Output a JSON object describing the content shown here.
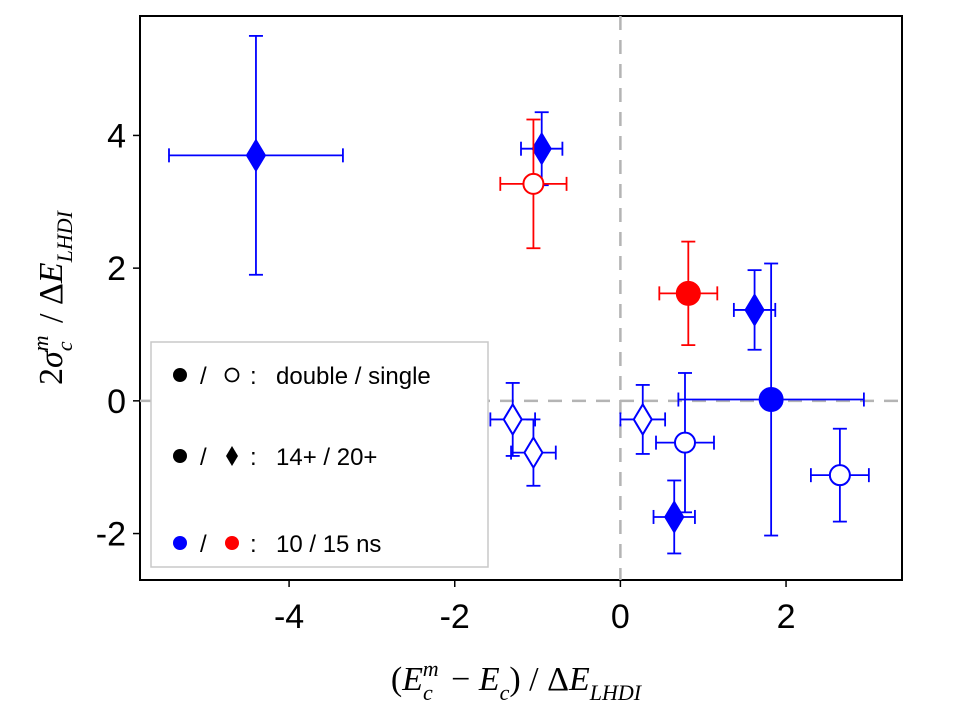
{
  "chart_data": {
    "type": "scatter",
    "xlabel": "(E_c^m − E_c) / ΔE_LHDI",
    "ylabel": "2σ_c^m / ΔE_LHDI",
    "xlim": [
      -5.8,
      3.4
    ],
    "ylim": [
      -2.7,
      5.8
    ],
    "x_ticks": [
      -4,
      -2,
      0,
      2
    ],
    "x_tick_labels": [
      "-4",
      "-2",
      "0",
      "2"
    ],
    "y_ticks": [
      -2,
      0,
      2,
      4
    ],
    "y_tick_labels": [
      "-2",
      "0",
      "2",
      "4"
    ],
    "reference_lines": {
      "x": 0,
      "y": 0,
      "style": "dashed"
    },
    "grid": false,
    "colors": {
      "blue": "#0000ff",
      "red": "#ff0000",
      "ref_line": "#b4b4b4"
    },
    "series": [
      {
        "name": "blue filled diamond (20+, double, 10 ns)",
        "marker": "diamond",
        "filled": true,
        "color": "blue",
        "points": [
          {
            "x": -4.4,
            "y": 3.7,
            "xerr": 1.05,
            "yerr": 1.8
          },
          {
            "x": -0.95,
            "y": 3.8,
            "xerr": 0.25,
            "yerr": 0.55
          },
          {
            "x": 1.62,
            "y": 1.37,
            "xerr": 0.25,
            "yerr": 0.6
          },
          {
            "x": 0.65,
            "y": -1.75,
            "xerr": 0.25,
            "yerr": 0.55
          }
        ]
      },
      {
        "name": "blue open diamond (20+, single, 10 ns)",
        "marker": "diamond",
        "filled": false,
        "color": "blue",
        "points": [
          {
            "x": -1.3,
            "y": -0.28,
            "xerr": 0.27,
            "yerr": 0.55
          },
          {
            "x": -1.05,
            "y": -0.78,
            "xerr": 0.27,
            "yerr": 0.5
          },
          {
            "x": 0.27,
            "y": -0.28,
            "xerr": 0.27,
            "yerr": 0.52
          }
        ]
      },
      {
        "name": "blue filled circle (14+, double, 10 ns)",
        "marker": "circle",
        "filled": true,
        "color": "blue",
        "points": [
          {
            "x": 1.82,
            "y": 0.02,
            "xerr": 1.12,
            "yerr": 2.05
          }
        ]
      },
      {
        "name": "blue open circle (14+, single, 10 ns)",
        "marker": "circle",
        "filled": false,
        "color": "blue",
        "points": [
          {
            "x": 0.78,
            "y": -0.63,
            "xerr": 0.35,
            "yerr": 1.05
          },
          {
            "x": 2.65,
            "y": -1.12,
            "xerr": 0.35,
            "yerr": 0.7
          }
        ]
      },
      {
        "name": "red filled circle (14+, double, 15 ns)",
        "marker": "circle",
        "filled": true,
        "color": "red",
        "points": [
          {
            "x": 0.82,
            "y": 1.62,
            "xerr": 0.35,
            "yerr": 0.78
          }
        ]
      },
      {
        "name": "red open circle (14+, single, 15 ns)",
        "marker": "circle",
        "filled": false,
        "color": "red",
        "points": [
          {
            "x": -1.05,
            "y": 3.27,
            "xerr": 0.4,
            "yerr": 0.97
          }
        ]
      }
    ],
    "legend": {
      "placement": "lower-left",
      "entries": [
        {
          "symbols": [
            "black-filled-circle",
            "slash",
            "black-open-circle"
          ],
          "slash": "/",
          "colon": ":",
          "text": "double / single"
        },
        {
          "symbols": [
            "black-filled-circle",
            "slash",
            "black-filled-diamond"
          ],
          "slash": "/",
          "colon": ":",
          "text": "14+ / 20+"
        },
        {
          "symbols": [
            "blue-filled-circle",
            "slash",
            "red-filled-circle"
          ],
          "slash": "/",
          "colon": ":",
          "text": "10 / 15 ns"
        }
      ]
    }
  }
}
